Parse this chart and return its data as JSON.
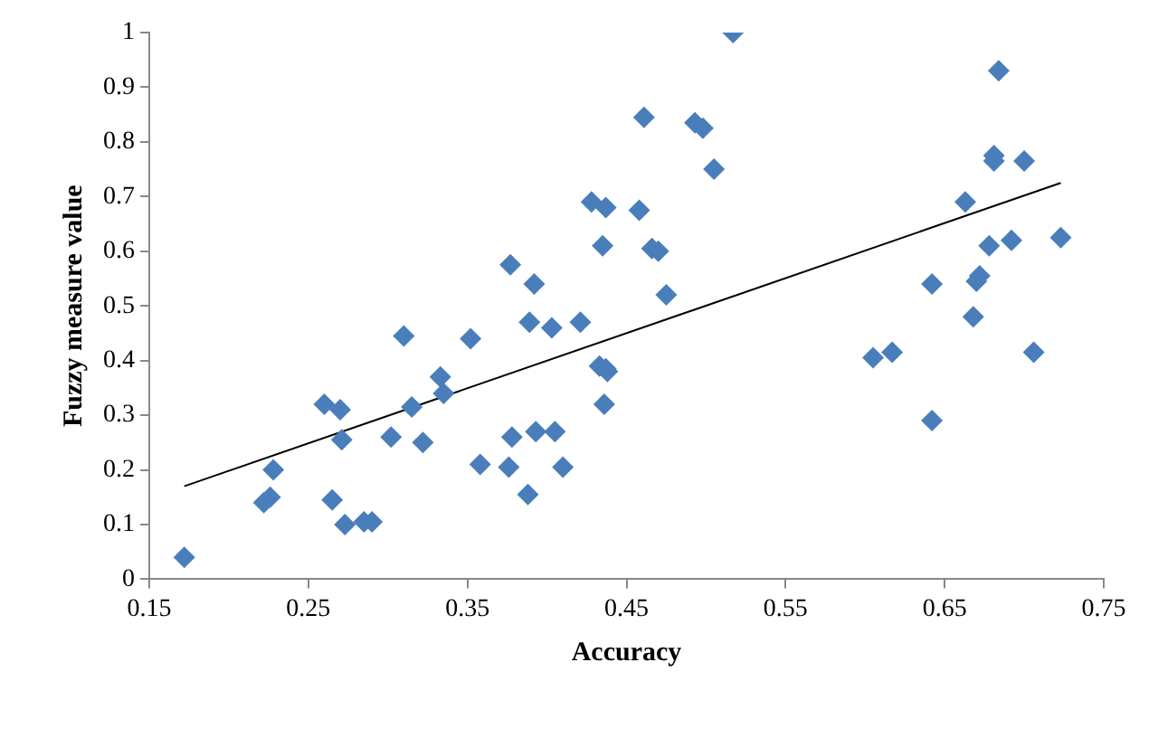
{
  "chart_data": {
    "type": "scatter",
    "xlabel": "Accuracy",
    "ylabel": "Fuzzy measure value",
    "xlim": [
      0.15,
      0.75
    ],
    "xticks": [
      0.15,
      0.25,
      0.35,
      0.45,
      0.55,
      0.65,
      0.75
    ],
    "ylim": [
      0,
      1
    ],
    "yticks": [
      0,
      0.1,
      0.2,
      0.3,
      0.4,
      0.5,
      0.6,
      0.7,
      0.8,
      0.9,
      1
    ],
    "grid": false,
    "legend": false,
    "marker": "diamond",
    "series": [
      {
        "type": "scatter",
        "color": "#4a7ebb",
        "x": [
          0.172,
          0.222,
          0.226,
          0.228,
          0.26,
          0.265,
          0.27,
          0.271,
          0.273,
          0.285,
          0.29,
          0.302,
          0.31,
          0.315,
          0.322,
          0.333,
          0.335,
          0.352,
          0.358,
          0.376,
          0.377,
          0.378,
          0.388,
          0.389,
          0.392,
          0.393,
          0.403,
          0.405,
          0.41,
          0.421,
          0.428,
          0.433,
          0.435,
          0.437,
          0.437,
          0.436,
          0.438,
          0.458,
          0.461,
          0.466,
          0.47,
          0.475,
          0.493,
          0.498,
          0.505,
          0.517,
          0.605,
          0.617,
          0.642,
          0.642,
          0.663,
          0.668,
          0.67,
          0.672,
          0.678,
          0.681,
          0.681,
          0.684,
          0.692,
          0.7,
          0.706,
          0.723
        ],
        "values": [
          0.04,
          0.14,
          0.15,
          0.2,
          0.32,
          0.145,
          0.31,
          0.255,
          0.1,
          0.105,
          0.105,
          0.26,
          0.445,
          0.315,
          0.25,
          0.37,
          0.34,
          0.44,
          0.21,
          0.205,
          0.575,
          0.26,
          0.155,
          0.47,
          0.54,
          0.27,
          0.46,
          0.27,
          0.205,
          0.47,
          0.69,
          0.39,
          0.61,
          0.385,
          0.68,
          0.32,
          0.38,
          0.675,
          0.845,
          0.605,
          0.6,
          0.52,
          0.835,
          0.825,
          0.75,
          1.0,
          0.405,
          0.415,
          0.54,
          0.29,
          0.69,
          0.48,
          0.545,
          0.555,
          0.61,
          0.765,
          0.775,
          0.93,
          0.62,
          0.765,
          0.415,
          0.625
        ]
      },
      {
        "type": "line",
        "color": "#000000",
        "marker": "none",
        "x": [
          0.172,
          0.723
        ],
        "values": [
          0.17,
          0.725
        ]
      }
    ]
  }
}
